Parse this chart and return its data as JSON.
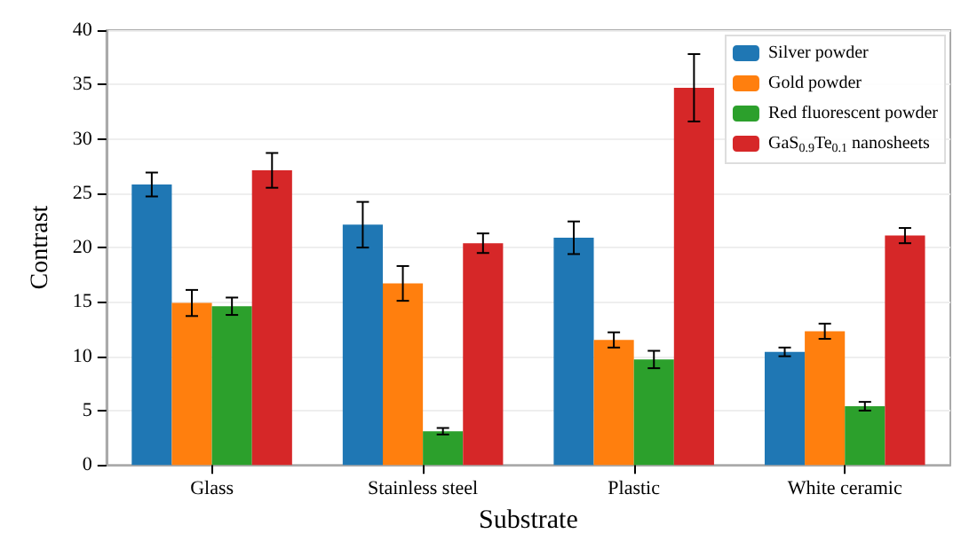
{
  "chart_data": {
    "type": "bar",
    "xlabel": "Substrate",
    "ylabel": "Contrast",
    "categories": [
      "Glass",
      "Stainless steel",
      "Plastic",
      "White ceramic"
    ],
    "series": [
      {
        "name": "Silver powder",
        "color": "#1f77b4",
        "values": [
          25.8,
          22.1,
          20.9,
          10.4
        ],
        "errors": [
          1.1,
          2.1,
          1.5,
          0.4
        ]
      },
      {
        "name": "Gold powder",
        "color": "#ff7f0e",
        "values": [
          14.9,
          16.7,
          11.5,
          12.3
        ],
        "errors": [
          1.2,
          1.6,
          0.7,
          0.7
        ]
      },
      {
        "name": "Red fluorescent powder",
        "color": "#2ca02c",
        "values": [
          14.6,
          3.1,
          9.7,
          5.4
        ],
        "errors": [
          0.8,
          0.3,
          0.8,
          0.4
        ]
      },
      {
        "name": "GaS$_{0.9}$Te$_{0.1}$ nanosheets",
        "color": "#d62728",
        "values": [
          27.1,
          20.4,
          34.7,
          21.1
        ],
        "errors": [
          1.6,
          0.9,
          3.1,
          0.7
        ]
      }
    ],
    "ylim": [
      0,
      40
    ],
    "yticks": [
      0,
      5,
      10,
      15,
      20,
      25,
      30,
      35,
      40
    ],
    "grid": "y",
    "legend": "top right"
  }
}
